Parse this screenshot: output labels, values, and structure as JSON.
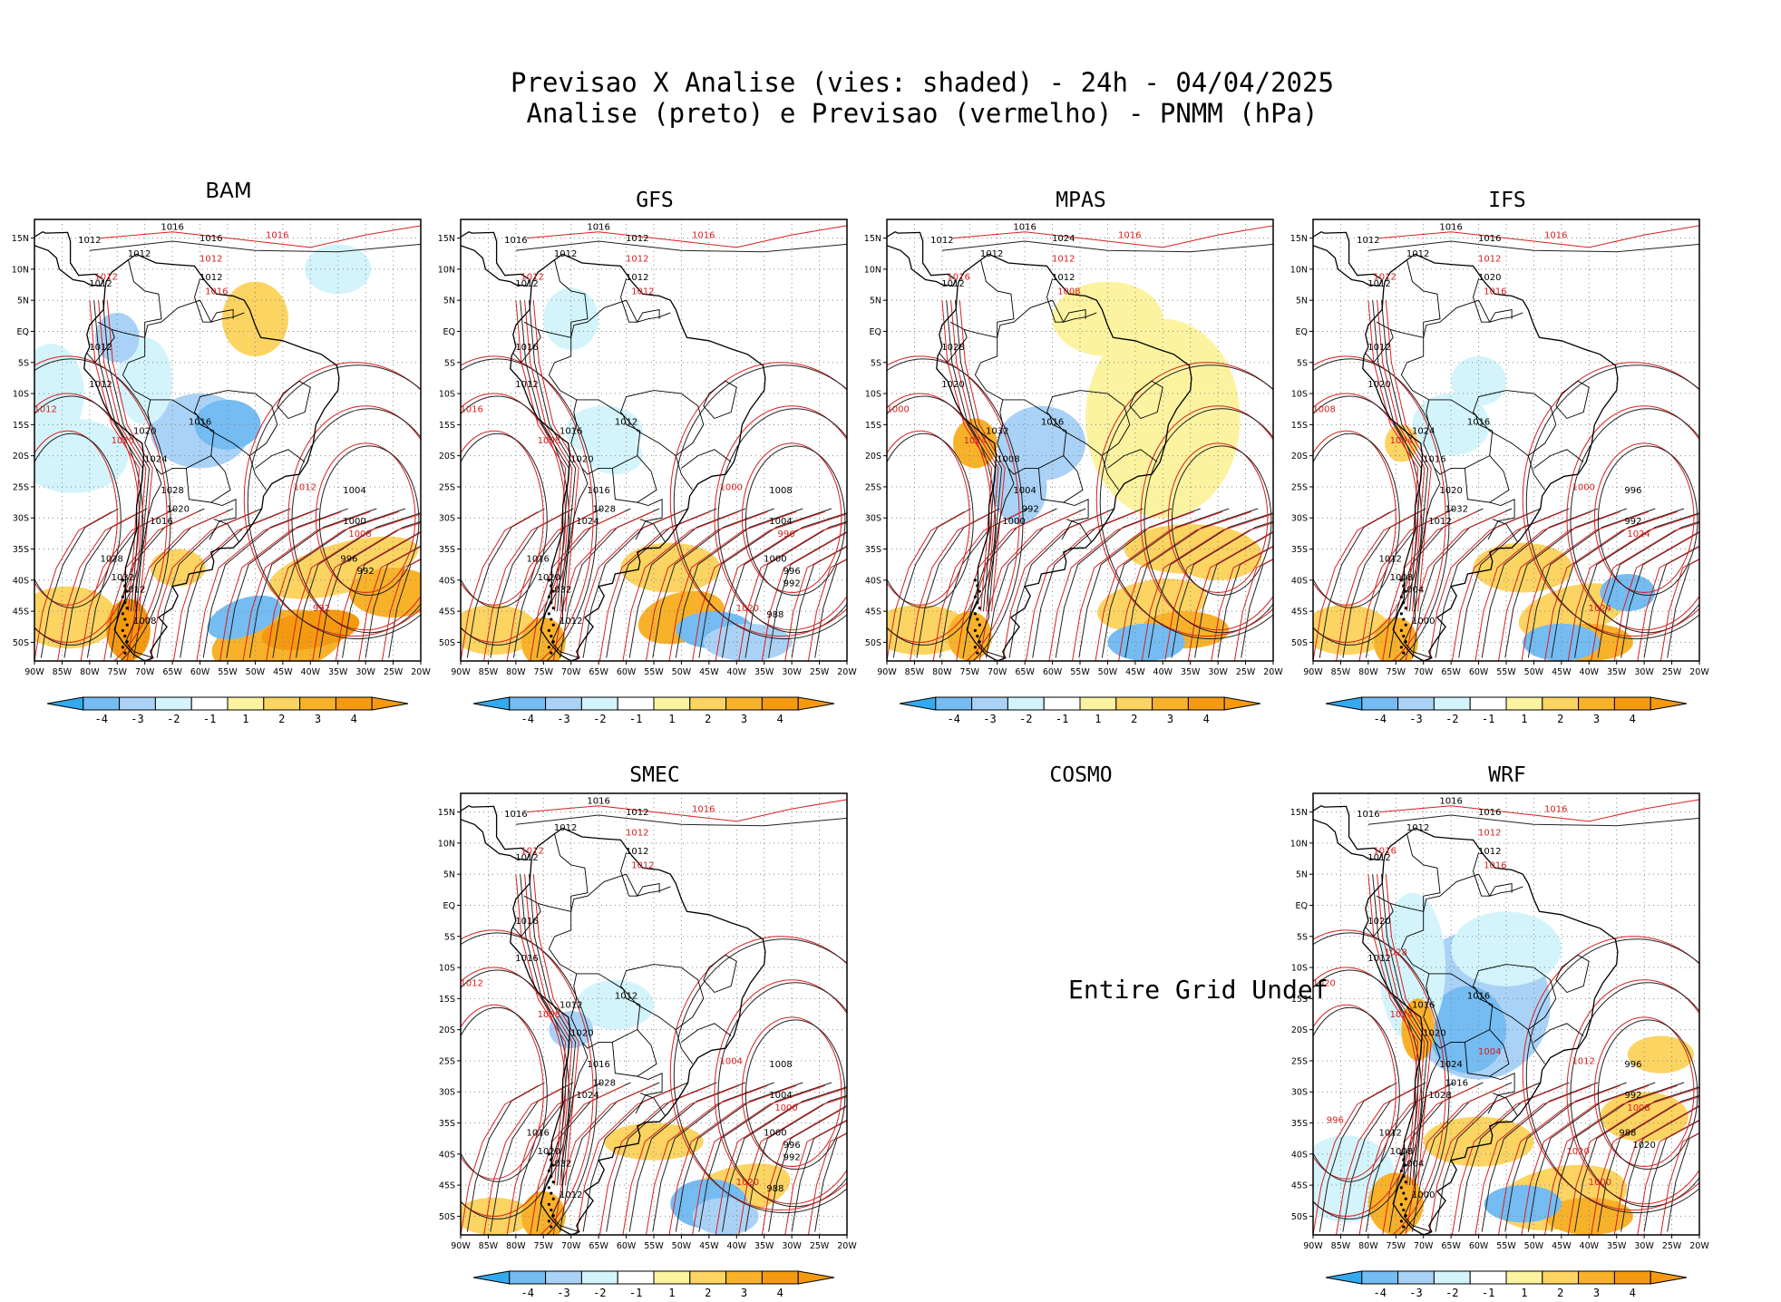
{
  "title": {
    "line1": "Previsao X Analise (vies: shaded) - 24h - 04/04/2025",
    "line2": "Analise (preto) e Previsao (vermelho) - PNMM (hPa)"
  },
  "map": {
    "lon_ticks": [
      "90W",
      "85W",
      "80W",
      "75W",
      "70W",
      "65W",
      "60W",
      "55W",
      "50W",
      "45W",
      "40W",
      "35W",
      "30W",
      "25W",
      "20W"
    ],
    "lat_ticks": [
      "15N",
      "10N",
      "5N",
      "EQ",
      "5S",
      "10S",
      "15S",
      "20S",
      "25S",
      "30S",
      "35S",
      "40S",
      "45S",
      "50S"
    ]
  },
  "colorbar": {
    "labels": [
      "-4",
      "-3",
      "-2",
      "-1",
      "1",
      "2",
      "3",
      "4"
    ],
    "colors": [
      "#33aaf0",
      "#74bcf2",
      "#aad2f6",
      "#d4f4fb",
      "#ffffff",
      "#fbf3a0",
      "#fcd462",
      "#f8b22a",
      "#f59a10"
    ]
  },
  "panels": [
    {
      "name": "BAM",
      "has_data": true,
      "black_labels": [
        "1016",
        "1012",
        "1012",
        "1012",
        "1012",
        "1016",
        "1012",
        "1012",
        "1016",
        "1020",
        "1024",
        "1028",
        "1016",
        "1020",
        "1028",
        "1032",
        "1012",
        "1008",
        "1004",
        "1000",
        "996",
        "992"
      ],
      "red_labels": [
        "1016",
        "1012",
        "1012",
        "1016",
        "1012",
        "1020",
        "1012",
        "1008",
        "992"
      ]
    },
    {
      "name": "GFS",
      "has_data": true,
      "black_labels": [
        "1016",
        "1016",
        "1012",
        "1012",
        "1012",
        "1012",
        "1016",
        "1012",
        "1012",
        "1016",
        "1020",
        "1016",
        "1024",
        "1028",
        "1016",
        "1020",
        "1032",
        "1012",
        "1008",
        "1004",
        "1000",
        "996",
        "992",
        "988"
      ],
      "red_labels": [
        "1016",
        "1012",
        "1012",
        "1012",
        "1016",
        "1008",
        "1000",
        "996",
        "1020"
      ]
    },
    {
      "name": "MPAS",
      "has_data": true,
      "black_labels": [
        "1016",
        "1012",
        "1012",
        "1012",
        "1012",
        "1024",
        "1028",
        "1020",
        "1016",
        "1032",
        "1008",
        "1004",
        "1000",
        "992"
      ],
      "red_labels": [
        "1016",
        "1012",
        "1016",
        "1008",
        "1000",
        "1024"
      ]
    },
    {
      "name": "IFS",
      "has_data": true,
      "black_labels": [
        "1016",
        "1012",
        "1012",
        "1012",
        "1020",
        "1016",
        "1012",
        "1020",
        "1016",
        "1024",
        "1016",
        "1020",
        "1012",
        "1032",
        "1012",
        "1008",
        "1004",
        "1000",
        "996",
        "992"
      ],
      "red_labels": [
        "1016",
        "1012",
        "1012",
        "1016",
        "1008",
        "1004",
        "1000",
        "1024",
        "1024"
      ]
    },
    {
      "name": "SMEC",
      "has_data": true,
      "black_labels": [
        "1016",
        "1016",
        "1012",
        "1012",
        "1012",
        "1012",
        "1016",
        "1016",
        "1012",
        "1012",
        "1020",
        "1016",
        "1024",
        "1028",
        "1016",
        "1020",
        "1032",
        "1012",
        "1008",
        "1004",
        "1000",
        "996",
        "992",
        "988"
      ],
      "red_labels": [
        "1016",
        "1012",
        "1012",
        "1012",
        "1012",
        "1008",
        "1004",
        "1000",
        "1020"
      ]
    },
    {
      "name": "COSMO",
      "has_data": false,
      "message": "Entire Grid Undef"
    },
    {
      "name": "WRF",
      "has_data": true,
      "black_labels": [
        "1016",
        "1016",
        "1012",
        "1012",
        "1012",
        "1016",
        "1020",
        "1012",
        "1016",
        "1016",
        "1020",
        "1024",
        "1028",
        "1016",
        "1012",
        "1008",
        "1004",
        "1000",
        "996",
        "992",
        "988",
        "1020"
      ],
      "red_labels": [
        "1016",
        "1012",
        "1016",
        "1016",
        "1020",
        "1024",
        "1012",
        "1008",
        "1000",
        "996",
        "1004",
        "1020",
        "1028"
      ]
    }
  ]
}
